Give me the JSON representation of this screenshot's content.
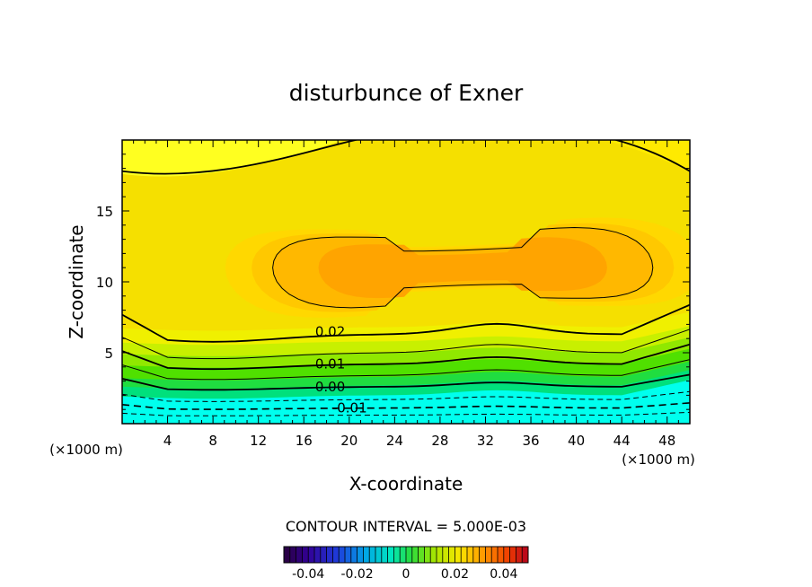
{
  "chart_data": {
    "type": "contour",
    "title": "disturbunce of Exner",
    "xlabel": "X-coordinate",
    "ylabel": "Z-coordinate",
    "x_unit": "(×1000 m)",
    "y_unit": "(×1000 m)",
    "xlim": [
      0,
      50
    ],
    "ylim": [
      0,
      20
    ],
    "x_ticks": [
      4,
      8,
      12,
      16,
      20,
      24,
      28,
      32,
      36,
      40,
      44,
      48
    ],
    "y_ticks": [
      5,
      10,
      15
    ],
    "contour_interval_text": "CONTOUR INTERVAL = 5.000E-03",
    "contour_interval": 0.005,
    "contour_labels": [
      {
        "text": "0.02",
        "x": 17,
        "y": 6.5
      },
      {
        "text": "0.01",
        "x": 17,
        "y": 4.2
      },
      {
        "text": "0.00",
        "x": 17,
        "y": 2.6
      },
      {
        "text": "-0.01",
        "x": 18.5,
        "y": 1.1
      }
    ],
    "colorbar": {
      "range": [
        -0.05,
        0.05
      ],
      "ticks": [
        "-0.04",
        "-0.02",
        "0",
        "0.02",
        "0.04"
      ],
      "tick_values": [
        -0.04,
        -0.02,
        0,
        0.02,
        0.04
      ]
    }
  }
}
